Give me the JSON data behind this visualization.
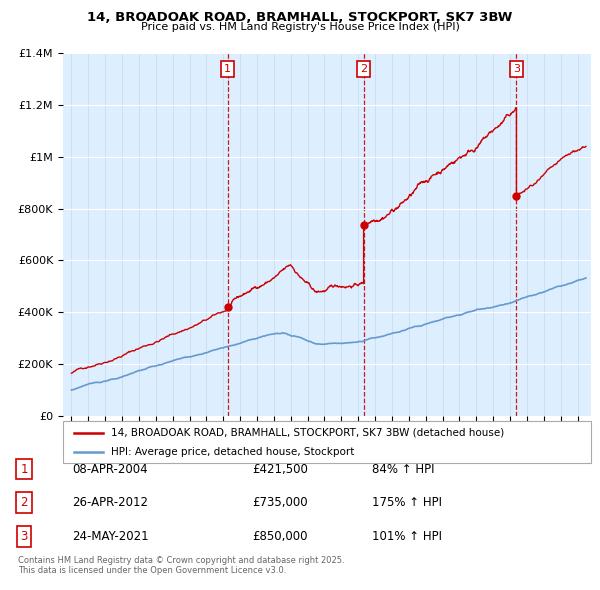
{
  "title": "14, BROADOAK ROAD, BRAMHALL, STOCKPORT, SK7 3BW",
  "subtitle": "Price paid vs. HM Land Registry's House Price Index (HPI)",
  "legend_property": "14, BROADOAK ROAD, BRAMHALL, STOCKPORT, SK7 3BW (detached house)",
  "legend_hpi": "HPI: Average price, detached house, Stockport",
  "copyright": "Contains HM Land Registry data © Crown copyright and database right 2025.\nThis data is licensed under the Open Government Licence v3.0.",
  "purchases": [
    {
      "num": 1,
      "date": "08-APR-2004",
      "price": "£421,500",
      "pct": "84% ↑ HPI",
      "year": 2004.27,
      "value": 421500
    },
    {
      "num": 2,
      "date": "26-APR-2012",
      "price": "£735,000",
      "pct": "175% ↑ HPI",
      "year": 2012.32,
      "value": 735000
    },
    {
      "num": 3,
      "date": "24-MAY-2021",
      "price": "£850,000",
      "pct": "101% ↑ HPI",
      "year": 2021.38,
      "value": 850000
    }
  ],
  "hpi_color": "#6699cc",
  "property_color": "#cc0000",
  "dashed_color": "#cc0000",
  "bg_color": "#ddeeff",
  "ylim": [
    0,
    1400000
  ],
  "xlim_start": 1994.5,
  "xlim_end": 2025.8
}
